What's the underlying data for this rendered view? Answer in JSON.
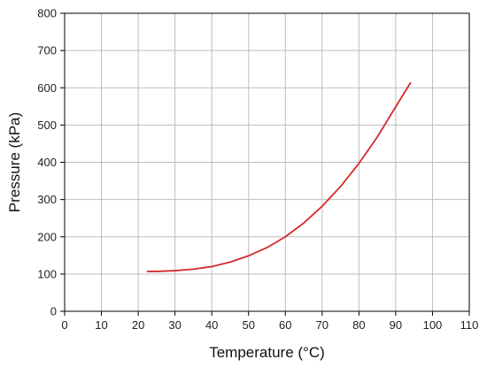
{
  "chart_data": {
    "type": "line",
    "title": "",
    "xlabel": "Temperature (°C)",
    "ylabel": "Pressure (kPa)",
    "xlim": [
      0,
      110
    ],
    "ylim": [
      0,
      800
    ],
    "xticks": [
      "0",
      "10",
      "20",
      "30",
      "40",
      "50",
      "60",
      "70",
      "80",
      "90",
      "100",
      "110"
    ],
    "yticks": [
      "0",
      "100",
      "200",
      "300",
      "400",
      "500",
      "600",
      "700",
      "800"
    ],
    "grid": true,
    "legend": "none",
    "series": [
      {
        "color": "#d42a2a",
        "x": [
          22.5,
          25,
          30,
          35,
          40,
          45,
          50,
          55,
          60,
          65,
          70,
          75,
          80,
          85,
          90,
          94
        ],
        "y": [
          107,
          107,
          109,
          113,
          120,
          132,
          149,
          171,
          200,
          237,
          282,
          335,
          397,
          468,
          549,
          613
        ]
      }
    ]
  }
}
